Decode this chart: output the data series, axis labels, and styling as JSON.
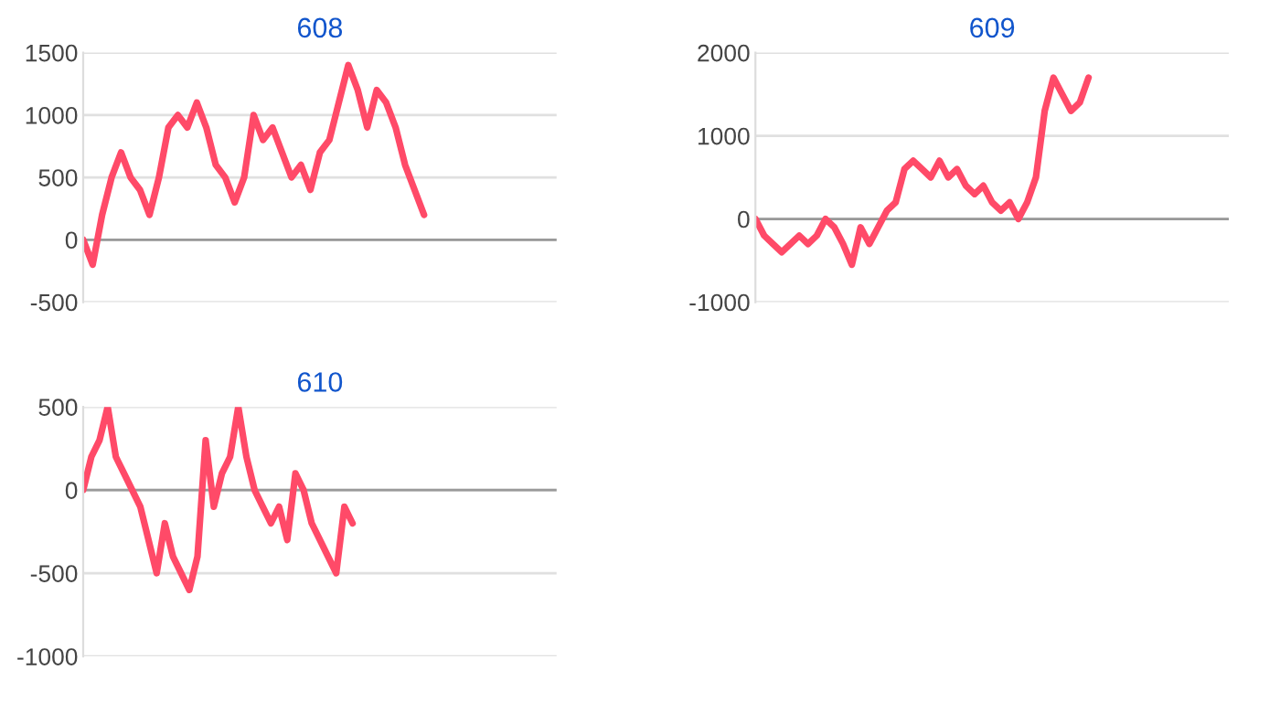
{
  "chart_data": [
    {
      "type": "line",
      "title": "608",
      "categories": [
        null,
        null,
        null,
        null,
        null,
        null,
        null,
        null,
        null,
        null,
        null,
        null,
        null,
        null,
        null,
        null,
        null,
        null,
        null,
        null,
        null,
        null,
        null,
        null,
        null,
        null,
        null,
        null,
        null,
        null,
        null,
        null,
        null,
        null,
        null,
        null,
        null,
        null,
        null,
        null,
        null,
        null,
        null,
        null,
        null,
        null,
        null,
        null,
        null,
        null,
        null
      ],
      "series": [
        {
          "color": "#ff4a68",
          "values": [
            0,
            -200,
            200,
            500,
            700,
            500,
            400,
            200,
            500,
            900,
            1000,
            900,
            1100,
            900,
            600,
            500,
            300,
            500,
            1000,
            800,
            900,
            700,
            500,
            600,
            400,
            700,
            800,
            1100,
            1400,
            1200,
            900,
            1200,
            1100,
            900,
            600,
            400,
            200,
            null,
            null,
            null,
            null,
            null,
            null,
            null,
            null,
            null,
            null,
            null,
            null,
            null,
            null
          ]
        }
      ],
      "ylim": [
        -500,
        1500
      ],
      "yticks": [
        -500,
        0,
        500,
        1000,
        1500
      ],
      "grid": "y",
      "tick_labels": "y",
      "ref_lines": [
        {
          "axis": "y",
          "value": 0,
          "color": "#999999"
        }
      ]
    },
    {
      "type": "line",
      "title": "609",
      "categories": [
        null,
        null,
        null,
        null,
        null,
        null,
        null,
        null,
        null,
        null,
        null,
        null,
        null,
        null,
        null,
        null,
        null,
        null,
        null,
        null,
        null,
        null,
        null,
        null,
        null,
        null,
        null,
        null,
        null,
        null,
        null,
        null,
        null,
        null,
        null,
        null,
        null,
        null,
        null,
        null,
        null,
        null,
        null,
        null,
        null,
        null,
        null,
        null,
        null,
        null,
        null,
        null,
        null,
        null,
        null
      ],
      "series": [
        {
          "color": "#ff4a68",
          "values": [
            0,
            -200,
            -300,
            -400,
            -300,
            -200,
            -300,
            -200,
            0,
            -100,
            -300,
            -550,
            -100,
            -300,
            -100,
            100,
            200,
            600,
            700,
            600,
            500,
            700,
            500,
            600,
            400,
            300,
            400,
            200,
            100,
            200,
            0,
            200,
            500,
            1300,
            1700,
            1500,
            1300,
            1400,
            1700,
            null,
            null,
            null,
            null,
            null,
            null,
            null,
            null,
            null,
            null,
            null,
            null,
            null,
            null,
            null,
            null
          ]
        }
      ],
      "ylim": [
        -1000,
        2000
      ],
      "yticks": [
        -1000,
        0,
        1000,
        2000
      ],
      "grid": "y",
      "tick_labels": "y",
      "ref_lines": [
        {
          "axis": "y",
          "value": 0,
          "color": "#999999"
        }
      ]
    },
    {
      "type": "line",
      "title": "610",
      "categories": [
        null,
        null,
        null,
        null,
        null,
        null,
        null,
        null,
        null,
        null,
        null,
        null,
        null,
        null,
        null,
        null,
        null,
        null,
        null,
        null,
        null,
        null,
        null,
        null,
        null,
        null,
        null,
        null,
        null,
        null,
        null,
        null,
        null,
        null,
        null,
        null,
        null,
        null,
        null,
        null,
        null,
        null,
        null,
        null,
        null,
        null,
        null,
        null,
        null,
        null,
        null,
        null,
        null,
        null,
        null,
        null,
        null,
        null,
        null
      ],
      "series": [
        {
          "color": "#ff4a68",
          "values": [
            0,
            200,
            300,
            500,
            200,
            100,
            0,
            -100,
            -300,
            -500,
            -200,
            -400,
            -500,
            -600,
            -400,
            300,
            -100,
            100,
            200,
            500,
            200,
            0,
            -100,
            -200,
            -100,
            -300,
            100,
            0,
            -200,
            -300,
            -400,
            -500,
            -100,
            -200,
            null,
            null,
            null,
            null,
            null,
            null,
            null,
            null,
            null,
            null,
            null,
            null,
            null,
            null,
            null,
            null,
            null,
            null,
            null,
            null,
            null,
            null,
            null,
            null,
            null
          ]
        }
      ],
      "ylim": [
        -1000,
        500
      ],
      "yticks": [
        -1000,
        -500,
        0,
        500
      ],
      "grid": "y",
      "tick_labels": "y",
      "ref_lines": [
        {
          "axis": "y",
          "value": 0,
          "color": "#999999"
        }
      ]
    }
  ]
}
